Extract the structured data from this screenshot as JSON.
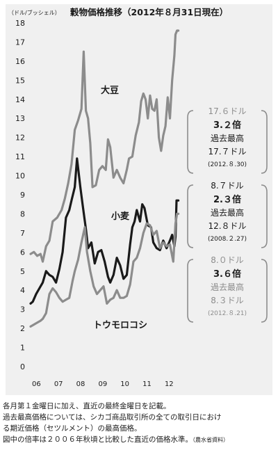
{
  "chart_data": {
    "type": "line",
    "title": "穀物価格推移（2012年８月31日現在）",
    "ylabel": "（ドル/ブッシェル）",
    "ylim": [
      0,
      18
    ],
    "yticks": [
      0,
      1,
      2,
      3,
      4,
      5,
      6,
      7,
      8,
      9,
      10,
      11,
      12,
      13,
      14,
      15,
      16,
      17,
      18
    ],
    "xlim": [
      2006.0,
      2012.85
    ],
    "xticks": [
      {
        "x": 2006.0,
        "label": "06"
      },
      {
        "x": 2007.0,
        "label": "07"
      },
      {
        "x": 2008.0,
        "label": "08"
      },
      {
        "x": 2009.0,
        "label": "09"
      },
      {
        "x": 2010.0,
        "label": "10"
      },
      {
        "x": 2011.0,
        "label": "11"
      },
      {
        "x": 2012.0,
        "label": "12"
      }
    ],
    "grid": false,
    "series": [
      {
        "name": "大豆",
        "color": "#8c8c8c",
        "x": [
          2006.0,
          2006.15,
          2006.3,
          2006.45,
          2006.55,
          2006.7,
          2006.85,
          2007.0,
          2007.2,
          2007.4,
          2007.55,
          2007.7,
          2007.85,
          2008.0,
          2008.15,
          2008.3,
          2008.4,
          2008.5,
          2008.6,
          2008.7,
          2008.8,
          2008.95,
          2009.1,
          2009.25,
          2009.4,
          2009.5,
          2009.6,
          2009.75,
          2009.9,
          2010.05,
          2010.2,
          2010.35,
          2010.45,
          2010.6,
          2010.75,
          2010.9,
          2011.0,
          2011.1,
          2011.2,
          2011.3,
          2011.4,
          2011.5,
          2011.6,
          2011.7,
          2011.8,
          2011.9,
          2012.0,
          2012.1,
          2012.2,
          2012.3,
          2012.4,
          2012.5,
          2012.55,
          2012.62,
          2012.68
        ],
        "y": [
          5.9,
          6.0,
          5.8,
          5.9,
          5.5,
          6.3,
          6.6,
          7.6,
          7.8,
          8.2,
          8.8,
          9.6,
          10.6,
          12.4,
          12.9,
          13.5,
          16.5,
          13.4,
          13.0,
          11.7,
          9.4,
          9.5,
          10.3,
          10.5,
          10.3,
          11.9,
          11.5,
          9.9,
          10.3,
          9.9,
          9.6,
          10.3,
          10.9,
          11.0,
          12.1,
          12.8,
          13.9,
          14.3,
          14.0,
          13.0,
          14.2,
          13.5,
          13.4,
          14.0,
          12.0,
          11.3,
          12.1,
          12.6,
          14.1,
          13.0,
          15.0,
          16.3,
          17.4,
          17.6,
          17.6
        ]
      },
      {
        "name": "小麦",
        "color": "#1a1a1a",
        "x": [
          2006.0,
          2006.1,
          2006.25,
          2006.4,
          2006.55,
          2006.7,
          2006.85,
          2007.0,
          2007.15,
          2007.3,
          2007.45,
          2007.6,
          2007.75,
          2007.85,
          2008.0,
          2008.1,
          2008.2,
          2008.25,
          2008.35,
          2008.5,
          2008.6,
          2008.75,
          2008.9,
          2009.05,
          2009.2,
          2009.35,
          2009.5,
          2009.6,
          2009.75,
          2009.9,
          2010.05,
          2010.2,
          2010.35,
          2010.5,
          2010.6,
          2010.7,
          2010.8,
          2010.95,
          2011.05,
          2011.15,
          2011.3,
          2011.45,
          2011.55,
          2011.7,
          2011.85,
          2012.0,
          2012.15,
          2012.3,
          2012.4,
          2012.5,
          2012.55,
          2012.6,
          2012.68
        ],
        "y": [
          3.3,
          3.4,
          3.8,
          4.1,
          4.4,
          5.0,
          4.8,
          4.7,
          4.4,
          5.1,
          6.0,
          7.8,
          8.2,
          8.7,
          9.4,
          10.9,
          9.9,
          9.4,
          8.5,
          7.2,
          6.2,
          6.5,
          5.4,
          6.0,
          6.1,
          5.5,
          4.7,
          4.4,
          4.8,
          5.7,
          5.3,
          4.6,
          4.8,
          6.4,
          7.3,
          7.6,
          8.2,
          7.6,
          8.5,
          8.3,
          7.4,
          7.3,
          6.5,
          6.2,
          6.1,
          6.6,
          6.2,
          6.6,
          6.9,
          6.3,
          6.8,
          8.7,
          8.7
        ]
      },
      {
        "name": "トウモロコシ",
        "color": "#8c8c8c",
        "x": [
          2006.0,
          2006.15,
          2006.3,
          2006.45,
          2006.55,
          2006.7,
          2006.85,
          2007.0,
          2007.15,
          2007.3,
          2007.45,
          2007.6,
          2007.75,
          2007.9,
          2008.0,
          2008.15,
          2008.3,
          2008.45,
          2008.55,
          2008.7,
          2008.85,
          2009.0,
          2009.15,
          2009.3,
          2009.45,
          2009.6,
          2009.75,
          2009.9,
          2010.05,
          2010.2,
          2010.35,
          2010.5,
          2010.65,
          2010.8,
          2010.95,
          2011.1,
          2011.25,
          2011.4,
          2011.55,
          2011.7,
          2011.85,
          2012.0,
          2012.15,
          2012.3,
          2012.45,
          2012.55,
          2012.62,
          2012.68
        ],
        "y": [
          2.1,
          2.2,
          2.3,
          2.4,
          2.5,
          2.8,
          3.8,
          4.1,
          3.9,
          3.6,
          3.4,
          3.5,
          3.6,
          4.5,
          5.0,
          5.6,
          6.5,
          7.3,
          6.0,
          5.0,
          4.2,
          3.8,
          4.0,
          4.2,
          3.3,
          3.5,
          3.6,
          4.0,
          3.6,
          3.6,
          3.7,
          4.3,
          5.5,
          5.7,
          6.2,
          7.0,
          7.5,
          7.4,
          6.9,
          7.1,
          6.2,
          6.5,
          6.3,
          6.4,
          5.5,
          7.5,
          8.0,
          8.0
        ]
      }
    ],
    "series_labels": [
      "大豆",
      "小麦",
      "トウモロコシ"
    ],
    "annotations": [
      {
        "series": "大豆",
        "price": "17.６ドル",
        "multiple": "3.２倍",
        "record": "過去最高",
        "record_price": "17.７ドル",
        "date": "(2012.８.30)"
      },
      {
        "series": "小麦",
        "price": "8.７ドル",
        "multiple": "2.３倍",
        "record": "過去最高",
        "record_price": "12.８ドル",
        "date": "(2008.２.27)"
      },
      {
        "series": "トウモロコシ",
        "price": "8.０ドル",
        "multiple": "3.６倍",
        "record": "過去最高",
        "record_price": "8.３ドル",
        "date": "(2012.８.21)"
      }
    ]
  },
  "notes": {
    "line1": "各月第１金曜日に加え、直近の最終金曜日を記載。",
    "line2": "過去最高価格については、シカゴ商品取引所の全ての取引日におけ",
    "line3": "る期近価格（セツルメント）の最高価格。",
    "line4": "図中の倍率は２００６年秋頃と比較した直近の価格水準。",
    "source": "（農水省資料）"
  }
}
